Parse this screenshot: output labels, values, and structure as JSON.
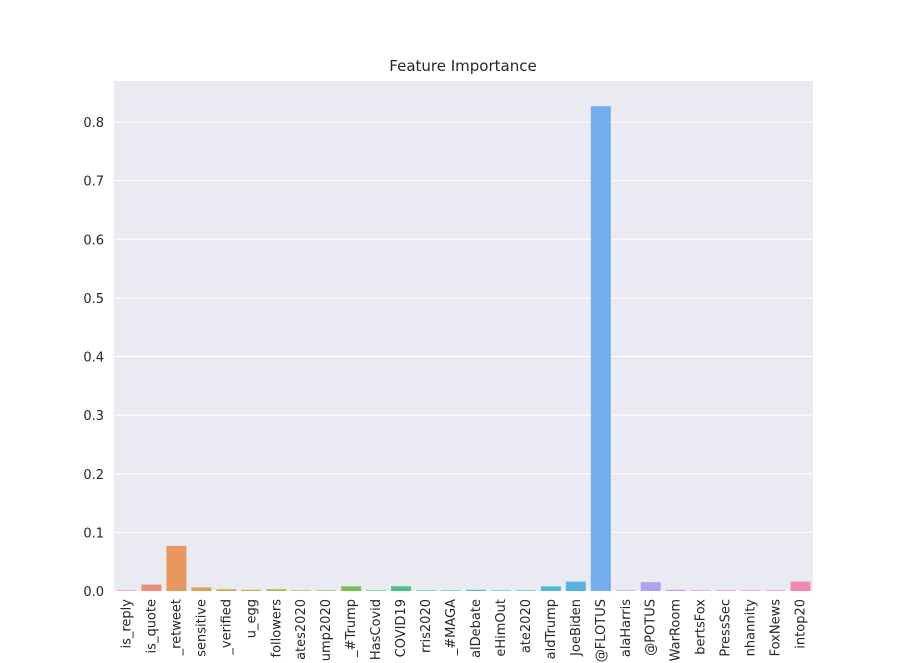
{
  "chart_data": {
    "type": "bar",
    "title": "Feature Importance",
    "xlabel": "",
    "ylabel": "",
    "ylim": [
      0,
      0.87
    ],
    "yticks": [
      0.0,
      0.1,
      0.2,
      0.3,
      0.4,
      0.5,
      0.6,
      0.7,
      0.8
    ],
    "ytick_labels": [
      "0.0",
      "0.1",
      "0.2",
      "0.3",
      "0.4",
      "0.5",
      "0.6",
      "0.7",
      "0.8"
    ],
    "grid": true,
    "categories": [
      "is_reply",
      "is_quote",
      "_retweet",
      "sensitive",
      "_verified",
      "u_egg",
      "followers",
      "ates2020",
      "ump2020",
      "_#Trump",
      "HasCovid",
      "COVID19",
      "rris2020",
      "_#MAGA",
      "alDebate",
      "eHimOut",
      "ate2020",
      "aldTrump",
      "JoeBiden",
      "@FLOTUS",
      "alaHarris",
      "@POTUS",
      "WarRoom",
      "bertsFox",
      "PressSec",
      "nhannity",
      "FoxNews",
      "intop20"
    ],
    "values": [
      0.001,
      0.011,
      0.077,
      0.006,
      0.003,
      0.002,
      0.003,
      0.001,
      0.001,
      0.008,
      0.001,
      0.008,
      0.001,
      0.001,
      0.002,
      0.001,
      0.001,
      0.008,
      0.016,
      0.827,
      0.001,
      0.015,
      0.002,
      0.001,
      0.001,
      0.001,
      0.001,
      0.016
    ],
    "colors": [
      "#f2869c",
      "#ee8e7a",
      "#e7975f",
      "#dca252",
      "#cdab4c",
      "#bfb04b",
      "#b0b44b",
      "#a0b84c",
      "#8ebc4d",
      "#76c14e",
      "#4fc26f",
      "#4ac187",
      "#49c097",
      "#4abfa5",
      "#4bbdb2",
      "#4bbcbd",
      "#4cbbc8",
      "#4fb8d4",
      "#55b2e2",
      "#74aced",
      "#9aa6ef",
      "#b29ff0",
      "#c497ef",
      "#d68cee",
      "#e57fe5",
      "#ed85d3",
      "#f088c1",
      "#f389ae"
    ]
  }
}
